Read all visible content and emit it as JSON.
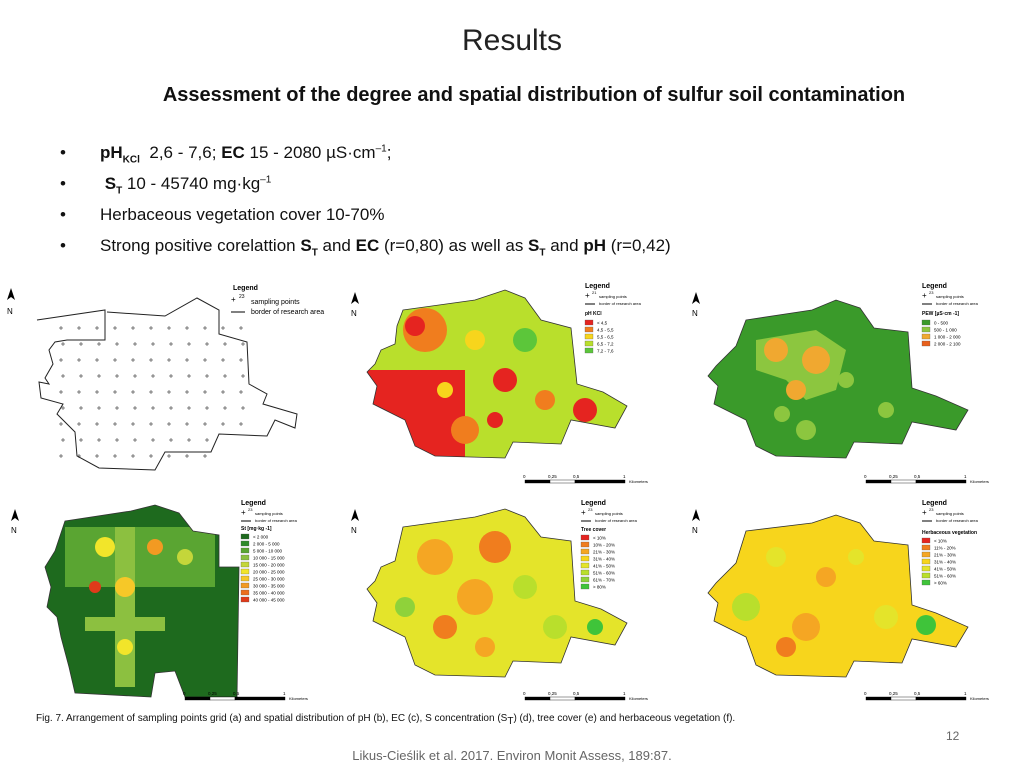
{
  "title": "Results",
  "subtitle": "Assessment of the degree and spatial distribution of sulfur soil contamination",
  "bullets": [
    {
      "parts": [
        "pH",
        "KCl",
        "2,6 - 7,6; ",
        "EC",
        " 15 - 2080 µS·cm",
        "–1",
        ";"
      ]
    },
    {
      "parts": [
        "S",
        "T",
        " 10 - 45740 mg·kg",
        "–1"
      ]
    },
    {
      "parts": [
        "Herbaceous vegetation  cover 10-70%"
      ]
    },
    {
      "parts": [
        "Strong positive corelattion ",
        "S",
        "T",
        " and ",
        "EC",
        " (r=0,80) as well as ",
        "S",
        "T",
        " and ",
        "pH",
        " (r=0,42)"
      ]
    }
  ],
  "panels": {
    "a": {
      "legend_title": "Legend",
      "legend_sup": "23",
      "legend_items": [
        "sampling points",
        "border of research area"
      ]
    },
    "b": {
      "legend_title": "Legend",
      "legend_sup": "21",
      "legend_items": [
        "sampling points",
        "border of research area"
      ],
      "scale_title": "pH KCl",
      "classes": [
        {
          "label": "< 4,5",
          "color": "#e52420"
        },
        {
          "label": "4,5 - 5,5",
          "color": "#f07d1e"
        },
        {
          "label": "5,5 - 6,5",
          "color": "#f7d51c"
        },
        {
          "label": "6,5 - 7,2",
          "color": "#b9df2c"
        },
        {
          "label": "7,2 - 7,6",
          "color": "#5cc63a"
        }
      ]
    },
    "c": {
      "legend_title": "Legend",
      "legend_sup": "23",
      "legend_items": [
        "sampling points",
        "border of research area"
      ],
      "scale_title": "PEW [µS·cm -1]",
      "classes": [
        {
          "label": "0 - 500",
          "color": "#3a9a2a"
        },
        {
          "label": "500 - 1 000",
          "color": "#8cc63f"
        },
        {
          "label": "1 000 - 2 000",
          "color": "#f0a830"
        },
        {
          "label": "2 000 - 2 100",
          "color": "#e8601c"
        }
      ]
    },
    "d": {
      "legend_title": "Legend",
      "legend_sup": "23",
      "legend_items": [
        "sampling points",
        "border of research area"
      ],
      "scale_title": "St [mg·kg -1]",
      "classes": [
        {
          "label": "< 2 000",
          "color": "#1e6a1e"
        },
        {
          "label": "2 000 - 5 000",
          "color": "#2f8a2a"
        },
        {
          "label": "5 000 - 10 000",
          "color": "#5aa532"
        },
        {
          "label": "10 000 - 15 000",
          "color": "#8cc040"
        },
        {
          "label": "15 000 - 20 000",
          "color": "#c4d63a"
        },
        {
          "label": "20 000 - 25 000",
          "color": "#f2e52a"
        },
        {
          "label": "25 000 - 30 000",
          "color": "#f6c828"
        },
        {
          "label": "30 000 - 35 000",
          "color": "#f29a22"
        },
        {
          "label": "35 000 - 40 000",
          "color": "#ec6e1e"
        },
        {
          "label": "40 000 - 45 000",
          "color": "#e03a1a"
        }
      ]
    },
    "e": {
      "legend_title": "Legend",
      "legend_sup": "23",
      "legend_items": [
        "sampling points",
        "border of research area"
      ],
      "scale_title": "Tree cover",
      "classes": [
        {
          "label": "< 10%",
          "color": "#e52420"
        },
        {
          "label": "10% - 20%",
          "color": "#f07d1e"
        },
        {
          "label": "21% - 30%",
          "color": "#f5a623"
        },
        {
          "label": "31% - 40%",
          "color": "#f7d51c"
        },
        {
          "label": "41% - 50%",
          "color": "#e4e42a"
        },
        {
          "label": "51% - 60%",
          "color": "#b9df2c"
        },
        {
          "label": "61% - 70%",
          "color": "#8fd23a"
        },
        {
          "label": "> 80%",
          "color": "#3fc43a"
        }
      ]
    },
    "f": {
      "legend_title": "Legend",
      "legend_sup": "23",
      "legend_items": [
        "sampling points",
        "border of research area"
      ],
      "scale_title": "Herbaceous vegetation",
      "classes": [
        {
          "label": "< 10%",
          "color": "#e52420"
        },
        {
          "label": "11% - 20%",
          "color": "#f07d1e"
        },
        {
          "label": "21% - 30%",
          "color": "#f5a623"
        },
        {
          "label": "31% - 40%",
          "color": "#f7d51c"
        },
        {
          "label": "41% - 50%",
          "color": "#e4e42a"
        },
        {
          "label": "51% - 60%",
          "color": "#b9df2c"
        },
        {
          "label": "> 60%",
          "color": "#3fc43a"
        }
      ]
    }
  },
  "scalebar": [
    "0",
    "0,25",
    "0,5",
    "1"
  ],
  "scalebar_unit": "Kilometers",
  "caption": {
    "pre": "Fig. 7. Arrangement of sampling points grid (a) and spatial distribution of pH (b), EC (c), S concentration (S",
    "sub": "T",
    "post": ") (d), tree cover (e) and herbaceous vegetation (f)."
  },
  "page_number": "12",
  "citation": "Likus-Cieślik et al. 2017. Environ Monit Assess, 189:87."
}
